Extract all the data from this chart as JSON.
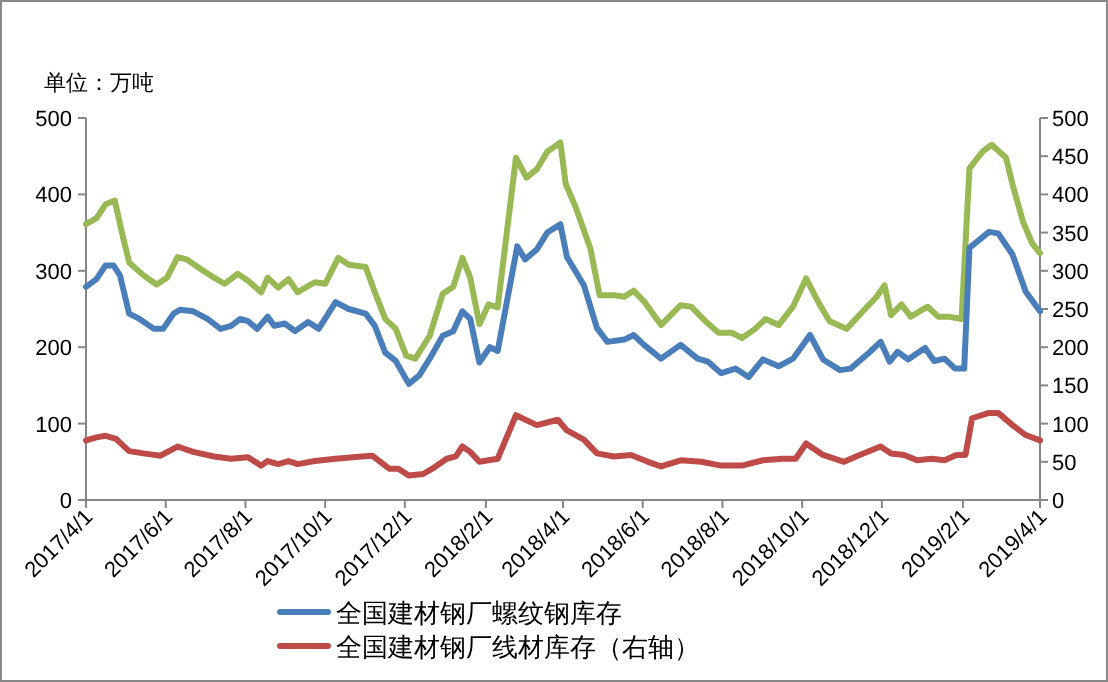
{
  "chart_data": {
    "type": "line",
    "ylabel": "单位：万吨",
    "legend": "bottom",
    "grid": false,
    "xlim": [
      "2017-04-01",
      "2019-04-01"
    ],
    "xticks": [
      {
        "value": "2017-04-01",
        "label": "2017/4/1"
      },
      {
        "value": "2017-06-01",
        "label": "2017/6/1"
      },
      {
        "value": "2017-08-01",
        "label": "2017/8/1"
      },
      {
        "value": "2017-10-01",
        "label": "2017/10/1"
      },
      {
        "value": "2017-12-01",
        "label": "2017/12/1"
      },
      {
        "value": "2018-02-01",
        "label": "2018/2/1"
      },
      {
        "value": "2018-04-01",
        "label": "2018/4/1"
      },
      {
        "value": "2018-06-01",
        "label": "2018/6/1"
      },
      {
        "value": "2018-08-01",
        "label": "2018/8/1"
      },
      {
        "value": "2018-10-01",
        "label": "2018/10/1"
      },
      {
        "value": "2018-12-01",
        "label": "2018/12/1"
      },
      {
        "value": "2019-02-01",
        "label": "2019/2/1"
      },
      {
        "value": "2019-04-01",
        "label": "2019/4/1"
      }
    ],
    "ylim": [
      0,
      500
    ],
    "yticks": [
      0,
      100,
      200,
      300,
      400,
      500
    ],
    "y2lim": [
      0,
      500
    ],
    "y2ticks": [
      0,
      50,
      100,
      150,
      200,
      250,
      300,
      350,
      400,
      450,
      500
    ],
    "series": [
      {
        "color": "#98b954",
        "x": [
          "2017-04-01",
          "2017-04-09",
          "2017-04-16",
          "2017-04-23",
          "2017-04-29",
          "2017-05-04",
          "2017-05-15",
          "2017-05-25",
          "2017-06-02",
          "2017-06-10",
          "2017-06-17",
          "2017-06-28",
          "2017-07-08",
          "2017-07-16",
          "2017-07-26",
          "2017-08-03",
          "2017-08-13",
          "2017-08-18",
          "2017-08-26",
          "2017-09-03",
          "2017-09-10",
          "2017-09-23",
          "2017-10-01",
          "2017-10-11",
          "2017-10-19",
          "2017-11-01",
          "2017-11-08",
          "2017-11-16",
          "2017-11-24",
          "2017-12-02",
          "2017-12-09",
          "2017-12-20",
          "2017-12-30",
          "2018-01-07",
          "2018-01-14",
          "2018-01-20",
          "2018-01-27",
          "2018-02-03",
          "2018-02-10",
          "2018-02-24",
          "2018-03-04",
          "2018-03-12",
          "2018-03-20",
          "2018-03-30",
          "2018-04-03",
          "2018-04-11",
          "2018-04-22",
          "2018-04-29",
          "2018-05-10",
          "2018-05-18",
          "2018-05-25",
          "2018-06-02",
          "2018-06-15",
          "2018-06-30",
          "2018-07-08",
          "2018-07-19",
          "2018-07-29",
          "2018-08-08",
          "2018-08-16",
          "2018-08-26",
          "2018-09-03",
          "2018-09-13",
          "2018-09-24",
          "2018-10-04",
          "2018-10-14",
          "2018-10-22",
          "2018-11-04",
          "2018-11-17",
          "2018-11-27",
          "2018-12-03",
          "2018-12-08",
          "2018-12-16",
          "2018-12-23",
          "2019-01-05",
          "2019-01-13",
          "2019-01-21",
          "2019-01-31",
          "2019-02-06",
          "2019-02-16",
          "2019-02-23",
          "2019-03-06",
          "2019-03-11",
          "2019-03-19",
          "2019-03-26",
          "2019-04-01"
        ],
        "values": [
          361,
          369,
          387,
          392,
          346,
          311,
          294,
          282,
          291,
          318,
          315,
          302,
          291,
          283,
          296,
          287,
          272,
          291,
          278,
          289,
          272,
          285,
          283,
          317,
          308,
          305,
          272,
          237,
          224,
          189,
          185,
          215,
          270,
          279,
          317,
          291,
          230,
          256,
          252,
          448,
          422,
          433,
          456,
          468,
          414,
          382,
          329,
          268,
          268,
          266,
          274,
          260,
          229,
          255,
          253,
          234,
          219,
          219,
          212,
          224,
          237,
          229,
          253,
          290,
          257,
          234,
          224,
          248,
          266,
          281,
          242,
          256,
          240,
          253,
          240,
          240,
          237,
          434,
          456,
          465,
          448,
          413,
          364,
          336,
          323
        ]
      },
      {
        "name": "全国建材钢厂螺纹钢库存",
        "color": "#4a7ebb",
        "x": [
          "2017-04-01",
          "2017-04-09",
          "2017-04-16",
          "2017-04-22",
          "2017-04-27",
          "2017-05-04",
          "2017-05-12",
          "2017-05-23",
          "2017-05-30",
          "2017-06-07",
          "2017-06-12",
          "2017-06-22",
          "2017-07-03",
          "2017-07-13",
          "2017-07-21",
          "2017-07-28",
          "2017-08-03",
          "2017-08-10",
          "2017-08-18",
          "2017-08-23",
          "2017-08-31",
          "2017-09-08",
          "2017-09-18",
          "2017-09-26",
          "2017-10-09",
          "2017-10-19",
          "2017-11-01",
          "2017-11-08",
          "2017-11-16",
          "2017-11-24",
          "2017-12-04",
          "2017-12-12",
          "2017-12-20",
          "2017-12-30",
          "2018-01-07",
          "2018-01-14",
          "2018-01-20",
          "2018-01-27",
          "2018-02-04",
          "2018-02-10",
          "2018-02-25",
          "2018-03-03",
          "2018-03-12",
          "2018-03-20",
          "2018-03-30",
          "2018-04-04",
          "2018-04-17",
          "2018-04-27",
          "2018-05-05",
          "2018-05-18",
          "2018-05-25",
          "2018-06-02",
          "2018-06-15",
          "2018-06-30",
          "2018-07-13",
          "2018-07-21",
          "2018-07-31",
          "2018-08-11",
          "2018-08-21",
          "2018-09-01",
          "2018-09-13",
          "2018-09-24",
          "2018-10-07",
          "2018-10-17",
          "2018-10-30",
          "2018-11-07",
          "2018-11-22",
          "2018-11-30",
          "2018-12-07",
          "2018-12-13",
          "2018-12-21",
          "2019-01-03",
          "2019-01-10",
          "2019-01-18",
          "2019-01-26",
          "2019-02-02",
          "2019-02-06",
          "2019-02-21",
          "2019-02-28",
          "2019-03-11",
          "2019-03-21",
          "2019-04-01"
        ],
        "values": [
          279,
          289,
          307,
          307,
          294,
          244,
          237,
          224,
          224,
          244,
          249,
          247,
          237,
          224,
          228,
          237,
          234,
          224,
          240,
          228,
          231,
          221,
          233,
          224,
          259,
          250,
          244,
          228,
          193,
          182,
          152,
          163,
          185,
          215,
          221,
          247,
          237,
          180,
          200,
          195,
          332,
          315,
          328,
          350,
          361,
          318,
          281,
          225,
          207,
          210,
          216,
          203,
          185,
          203,
          185,
          181,
          166,
          172,
          161,
          184,
          175,
          185,
          216,
          184,
          170,
          172,
          194,
          207,
          181,
          194,
          184,
          199,
          182,
          185,
          172,
          172,
          330,
          351,
          349,
          321,
          273,
          247
        ]
      },
      {
        "name": "全国建材钢厂线材库存（右轴）",
        "color": "#be4b48",
        "axis": "y2",
        "x": [
          "2017-04-01",
          "2017-04-09",
          "2017-04-16",
          "2017-04-24",
          "2017-05-04",
          "2017-05-15",
          "2017-05-28",
          "2017-06-10",
          "2017-06-22",
          "2017-07-08",
          "2017-07-21",
          "2017-08-03",
          "2017-08-13",
          "2017-08-18",
          "2017-08-26",
          "2017-09-03",
          "2017-09-10",
          "2017-09-23",
          "2017-10-09",
          "2017-10-29",
          "2017-11-06",
          "2017-11-19",
          "2017-11-26",
          "2017-12-04",
          "2017-12-15",
          "2017-12-22",
          "2018-01-02",
          "2018-01-09",
          "2018-01-14",
          "2018-01-20",
          "2018-01-27",
          "2018-02-10",
          "2018-02-24",
          "2018-03-12",
          "2018-03-28",
          "2018-04-04",
          "2018-04-17",
          "2018-04-27",
          "2018-05-10",
          "2018-05-23",
          "2018-06-05",
          "2018-06-15",
          "2018-06-30",
          "2018-07-16",
          "2018-07-31",
          "2018-08-16",
          "2018-09-01",
          "2018-09-16",
          "2018-09-26",
          "2018-10-04",
          "2018-10-17",
          "2018-11-02",
          "2018-11-14",
          "2018-11-30",
          "2018-12-08",
          "2018-12-18",
          "2018-12-28",
          "2019-01-08",
          "2019-01-18",
          "2019-01-27",
          "2019-02-03",
          "2019-02-08",
          "2019-02-21",
          "2019-02-28",
          "2019-03-11",
          "2019-03-21",
          "2019-04-01"
        ],
        "values": [
          78,
          82,
          84,
          80,
          64,
          61,
          58,
          70,
          63,
          57,
          54,
          56,
          45,
          51,
          47,
          51,
          47,
          51,
          54,
          57,
          58,
          41,
          41,
          32,
          34,
          41,
          54,
          57,
          70,
          63,
          50,
          54,
          111,
          98,
          105,
          91,
          79,
          61,
          57,
          59,
          50,
          44,
          52,
          50,
          45,
          45,
          52,
          54,
          54,
          74,
          59,
          50,
          59,
          70,
          61,
          59,
          52,
          54,
          52,
          59,
          59,
          107,
          114,
          114,
          98,
          85,
          78
        ]
      }
    ]
  }
}
